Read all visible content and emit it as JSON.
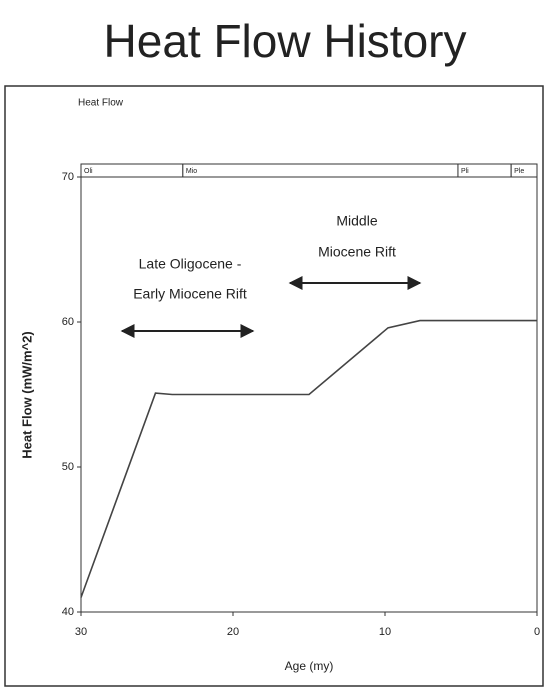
{
  "chart_data": {
    "type": "line",
    "title": "Heat Flow History",
    "subtitle": "Heat Flow",
    "x_label": "Age (my)",
    "y_label": "Heat Flow (mW/m^2)",
    "x": [
      30,
      25.1,
      24,
      15,
      9.8,
      7.7,
      0
    ],
    "series": [
      {
        "name": "Heat Flow",
        "color": "#444444",
        "values": [
          41,
          55.1,
          55,
          55,
          59.6,
          60.1,
          60.1
        ]
      }
    ],
    "xlim": [
      30,
      0
    ],
    "xticks": [
      30,
      20,
      10,
      0
    ],
    "ylim": [
      40,
      70
    ],
    "yticks": [
      70,
      60,
      50,
      40
    ],
    "periods": [
      {
        "label": "Oli",
        "start": 30,
        "end": 23.3
      },
      {
        "label": "Mio",
        "start": 23.3,
        "end": 5.2
      },
      {
        "label": "Pli",
        "start": 5.2,
        "end": 1.7
      },
      {
        "label": "Ple",
        "start": 1.7,
        "end": 0
      }
    ],
    "annotations": [
      [
        "Late Oligocene -",
        "Early Miocene Rift"
      ],
      [
        "Middle",
        "Miocene Rift"
      ]
    ]
  }
}
